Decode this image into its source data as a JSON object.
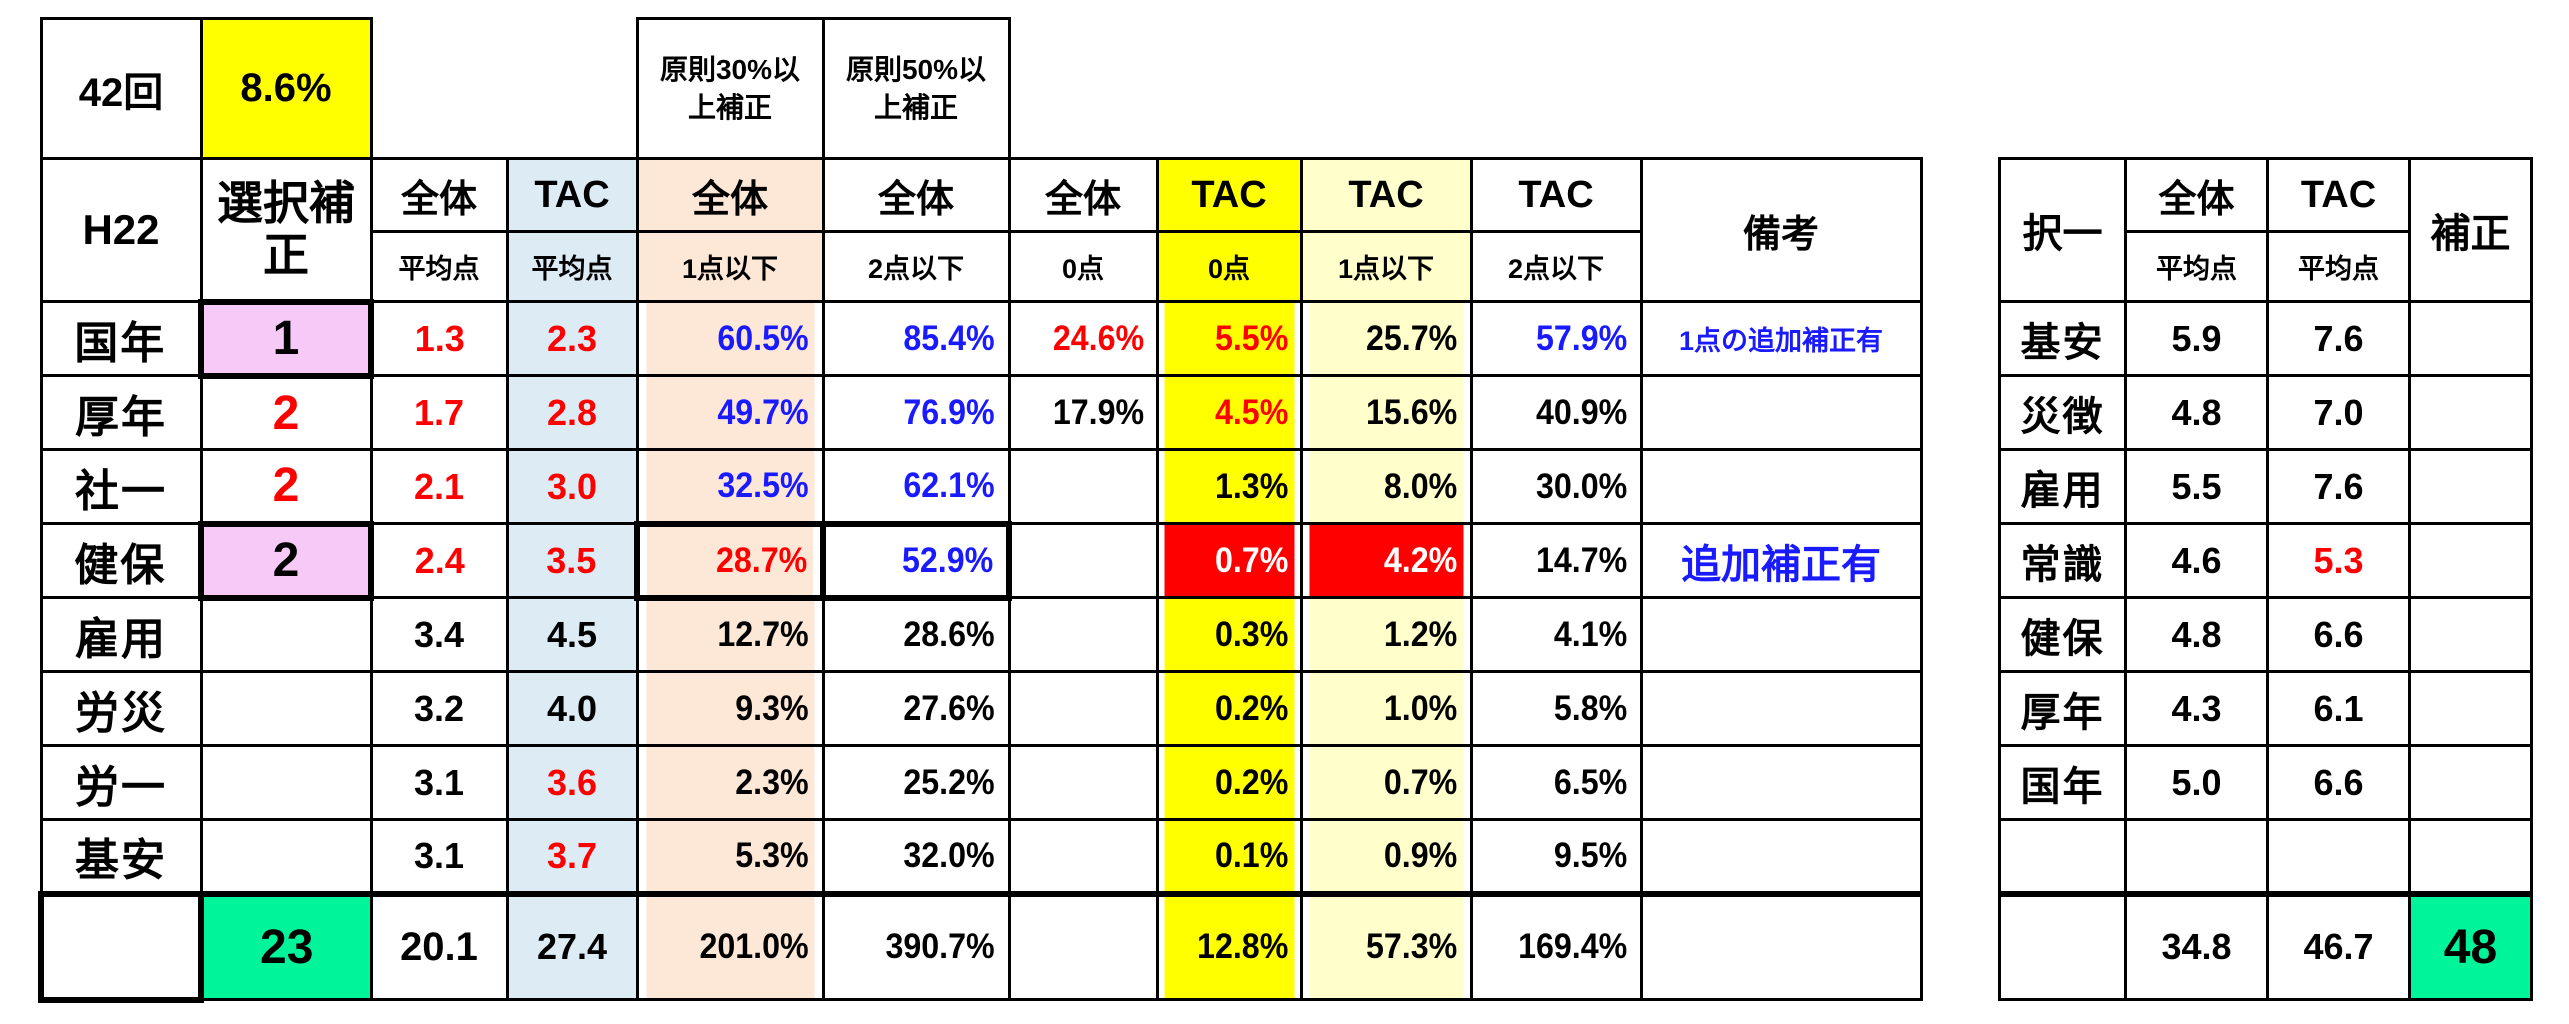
{
  "top": {
    "session": "42回",
    "rate": "8.6%",
    "note30": "原則30%以上補正",
    "note50": "原則50%以上補正"
  },
  "main": {
    "year": "H22",
    "sel_header": "選択補正",
    "headers": [
      {
        "top": "全体",
        "sub": "平均点"
      },
      {
        "top": "TAC",
        "sub": "平均点"
      },
      {
        "top": "全体",
        "sub": "1点以下"
      },
      {
        "top": "全体",
        "sub": "2点以下"
      },
      {
        "top": "全体",
        "sub": "0点"
      },
      {
        "top": "TAC",
        "sub": "0点"
      },
      {
        "top": "TAC",
        "sub": "1点以下"
      },
      {
        "top": "TAC",
        "sub": "2点以下"
      }
    ],
    "remarks_header": "備考",
    "rows": [
      {
        "subject": "国年",
        "sel": "1",
        "avg_all": "1.3",
        "avg_tac": "2.3",
        "all_le1": "60.5%",
        "all_le2": "85.4%",
        "all_0": "24.6%",
        "tac_0": "5.5%",
        "tac_le1": "25.7%",
        "tac_le2": "57.9%",
        "note": "1点の追加補正有"
      },
      {
        "subject": "厚年",
        "sel": "2",
        "avg_all": "1.7",
        "avg_tac": "2.8",
        "all_le1": "49.7%",
        "all_le2": "76.9%",
        "all_0": "17.9%",
        "tac_0": "4.5%",
        "tac_le1": "15.6%",
        "tac_le2": "40.9%",
        "note": ""
      },
      {
        "subject": "社一",
        "sel": "2",
        "avg_all": "2.1",
        "avg_tac": "3.0",
        "all_le1": "32.5%",
        "all_le2": "62.1%",
        "all_0": "",
        "tac_0": "1.3%",
        "tac_le1": "8.0%",
        "tac_le2": "30.0%",
        "note": ""
      },
      {
        "subject": "健保",
        "sel": "2",
        "avg_all": "2.4",
        "avg_tac": "3.5",
        "all_le1": "28.7%",
        "all_le2": "52.9%",
        "all_0": "",
        "tac_0": "0.7%",
        "tac_le1": "4.2%",
        "tac_le2": "14.7%",
        "note": "追加補正有"
      },
      {
        "subject": "雇用",
        "sel": "",
        "avg_all": "3.4",
        "avg_tac": "4.5",
        "all_le1": "12.7%",
        "all_le2": "28.6%",
        "all_0": "",
        "tac_0": "0.3%",
        "tac_le1": "1.2%",
        "tac_le2": "4.1%",
        "note": ""
      },
      {
        "subject": "労災",
        "sel": "",
        "avg_all": "3.2",
        "avg_tac": "4.0",
        "all_le1": "9.3%",
        "all_le2": "27.6%",
        "all_0": "",
        "tac_0": "0.2%",
        "tac_le1": "1.0%",
        "tac_le2": "5.8%",
        "note": ""
      },
      {
        "subject": "労一",
        "sel": "",
        "avg_all": "3.1",
        "avg_tac": "3.6",
        "all_le1": "2.3%",
        "all_le2": "25.2%",
        "all_0": "",
        "tac_0": "0.2%",
        "tac_le1": "0.7%",
        "tac_le2": "6.5%",
        "note": ""
      },
      {
        "subject": "基安",
        "sel": "",
        "avg_all": "3.1",
        "avg_tac": "3.7",
        "all_le1": "5.3%",
        "all_le2": "32.0%",
        "all_0": "",
        "tac_0": "0.1%",
        "tac_le1": "0.9%",
        "tac_le2": "9.5%",
        "note": ""
      }
    ],
    "totals": {
      "subject": "",
      "sel": "23",
      "avg_all": "20.1",
      "avg_tac": "27.4",
      "all_le1": "201.0%",
      "all_le2": "390.7%",
      "all_0": "",
      "tac_0": "12.8%",
      "tac_le1": "57.3%",
      "tac_le2": "169.4%",
      "note": ""
    }
  },
  "side": {
    "header": "択一",
    "headers": [
      {
        "top": "全体",
        "sub": "平均点"
      },
      {
        "top": "TAC",
        "sub": "平均点"
      }
    ],
    "correction_header": "補正",
    "rows": [
      {
        "subject": "基安",
        "avg_all": "5.9",
        "avg_tac": "7.6"
      },
      {
        "subject": "災徴",
        "avg_all": "4.8",
        "avg_tac": "7.0"
      },
      {
        "subject": "雇用",
        "avg_all": "5.5",
        "avg_tac": "7.6"
      },
      {
        "subject": "常識",
        "avg_all": "4.6",
        "avg_tac": "5.3"
      },
      {
        "subject": "健保",
        "avg_all": "4.8",
        "avg_tac": "6.6"
      },
      {
        "subject": "厚年",
        "avg_all": "4.3",
        "avg_tac": "6.1"
      },
      {
        "subject": "国年",
        "avg_all": "5.0",
        "avg_tac": "6.6"
      },
      {
        "subject": "",
        "avg_all": "",
        "avg_tac": ""
      }
    ],
    "totals": {
      "avg_all": "34.8",
      "avg_tac": "46.7",
      "correction": "48"
    }
  },
  "colors": {
    "yellow": "#ffff00",
    "light_yellow": "#ffffcc",
    "peach": "#fde7d7",
    "light_blue": "#dcebf4",
    "pink": "#f6c9f7",
    "green": "#00f59a",
    "red": "#ff0000",
    "blue": "#1a1aff"
  }
}
